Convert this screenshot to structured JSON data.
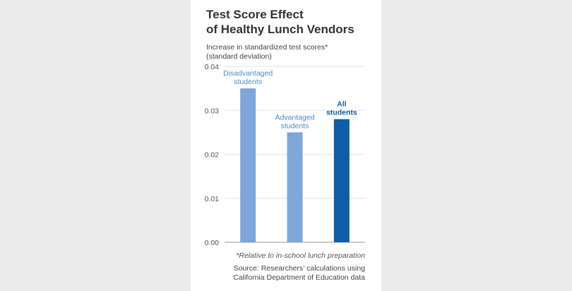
{
  "title_lines": [
    "Test Score Effect",
    "of Healthy Lunch Vendors"
  ],
  "ylabel_lines": [
    "Increase in standardized test scores*",
    "(standard deviation)"
  ],
  "footnote": "*Relative to in-school lunch preparation",
  "source_lines": [
    "Source: Researchers’ calculations using",
    "California Department of Education data"
  ],
  "colors": {
    "light_bar": "#7ea7d9",
    "dark_bar": "#0e5ea8",
    "light_label": "#4a8ccc",
    "dark_label": "#0e5ea8"
  },
  "chart_data": {
    "type": "bar",
    "ylim": [
      0,
      0.04
    ],
    "yticks": [
      "0.00",
      "0.01",
      "0.02",
      "0.03",
      "0.04"
    ],
    "grid": true,
    "categories": [
      {
        "label_lines": [
          "Disadvantaged",
          "students"
        ],
        "value": 0.035,
        "highlight": false
      },
      {
        "label_lines": [
          "Advantaged",
          "students"
        ],
        "value": 0.025,
        "highlight": false
      },
      {
        "label_lines": [
          "All",
          "students"
        ],
        "value": 0.028,
        "highlight": true
      }
    ]
  }
}
